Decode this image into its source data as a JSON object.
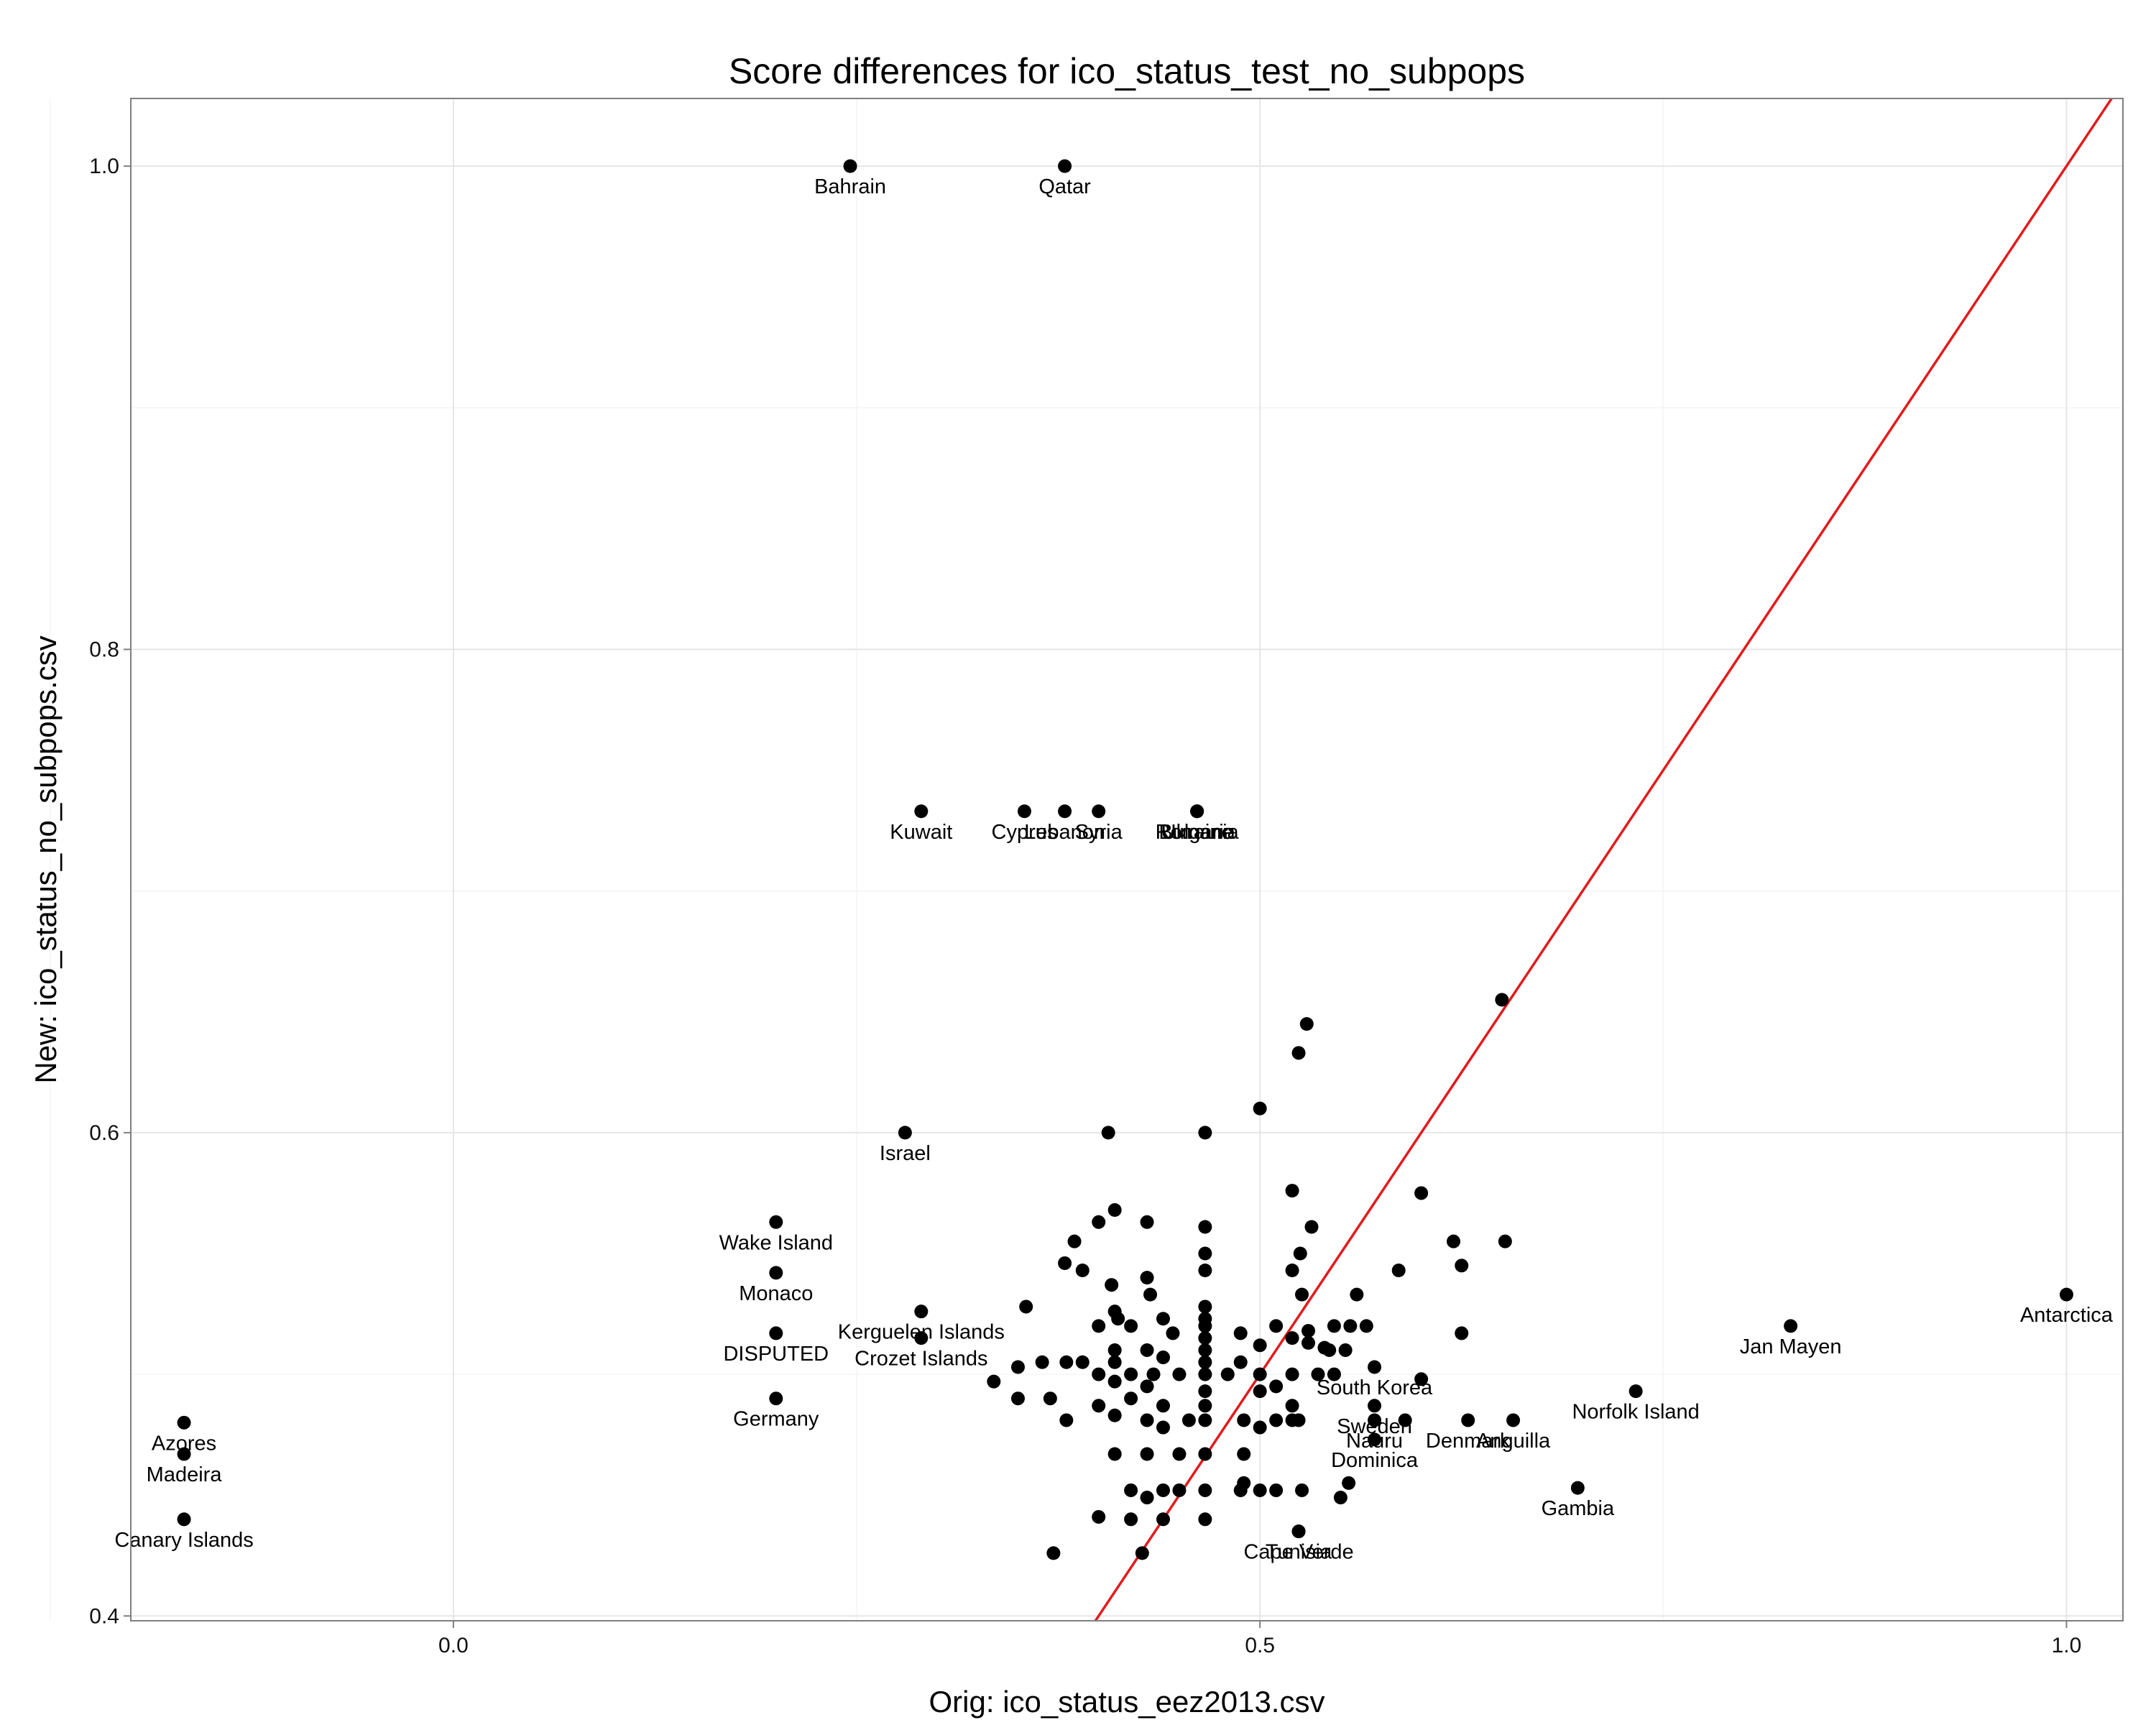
{
  "chart_data": {
    "type": "scatter",
    "title": "Score differences for ico_status_test_no_subpops",
    "xlabel": "Orig: ico_status_eez2013.csv",
    "ylabel": "New: ico_status_no_subpops.csv",
    "xlim": [
      -0.2,
      1.035
    ],
    "ylim": [
      0.398,
      1.028
    ],
    "x_ticks": [
      0.0,
      0.5,
      1.0
    ],
    "x_tick_labels": [
      "0.0",
      "0.5",
      "1.0"
    ],
    "y_ticks": [
      0.4,
      0.6,
      0.8,
      1.0
    ],
    "y_tick_labels": [
      "0.4",
      "0.6",
      "0.8",
      "1.0"
    ],
    "grid": true,
    "reference_line": {
      "slope": 1,
      "intercept": 0,
      "color": "#e41a1c"
    },
    "point_color": "#000000",
    "labeled_points": [
      {
        "label": "Bahrain",
        "x": 0.246,
        "y": 1.0
      },
      {
        "label": "Qatar",
        "x": 0.379,
        "y": 1.0
      },
      {
        "label": "Kuwait",
        "x": 0.29,
        "y": 0.733
      },
      {
        "label": "Cyprus",
        "x": 0.354,
        "y": 0.733
      },
      {
        "label": "Lebanon",
        "x": 0.379,
        "y": 0.733
      },
      {
        "label": "Syria",
        "x": 0.4,
        "y": 0.733
      },
      {
        "label": "Romania",
        "x": 0.461,
        "y": 0.733
      },
      {
        "label": "Bulgaria",
        "x": 0.461,
        "y": 0.733
      },
      {
        "label": "Ukraine",
        "x": 0.461,
        "y": 0.733
      },
      {
        "label": "Israel",
        "x": 0.28,
        "y": 0.6
      },
      {
        "label": "Wake Island",
        "x": 0.2,
        "y": 0.563
      },
      {
        "label": "Monaco",
        "x": 0.2,
        "y": 0.542
      },
      {
        "label": "Kerguelen Islands",
        "x": 0.29,
        "y": 0.526
      },
      {
        "label": "Crozet Islands",
        "x": 0.29,
        "y": 0.515
      },
      {
        "label": "DISPUTED",
        "x": 0.2,
        "y": 0.517
      },
      {
        "label": "Germany",
        "x": 0.2,
        "y": 0.49
      },
      {
        "label": "Azores",
        "x": -0.167,
        "y": 0.48
      },
      {
        "label": "Madeira",
        "x": -0.167,
        "y": 0.467
      },
      {
        "label": "Canary Islands",
        "x": -0.167,
        "y": 0.44
      },
      {
        "label": "South Korea",
        "x": 0.571,
        "y": 0.503
      },
      {
        "label": "Sweden",
        "x": 0.571,
        "y": 0.487
      },
      {
        "label": "Nauru",
        "x": 0.571,
        "y": 0.481
      },
      {
        "label": "Denmark",
        "x": 0.629,
        "y": 0.481
      },
      {
        "label": "Dominica",
        "x": 0.571,
        "y": 0.473
      },
      {
        "label": "Anguilla",
        "x": 0.657,
        "y": 0.481
      },
      {
        "label": "Norfolk Island",
        "x": 0.733,
        "y": 0.493
      },
      {
        "label": "Jan Mayen",
        "x": 0.829,
        "y": 0.52
      },
      {
        "label": "Antarctica",
        "x": 1.0,
        "y": 0.533
      },
      {
        "label": "Gambia",
        "x": 0.697,
        "y": 0.453
      },
      {
        "label": "Cape Verde",
        "x": 0.524,
        "y": 0.435
      },
      {
        "label": "Tunisia",
        "x": 0.524,
        "y": 0.435
      }
    ],
    "points": [
      [
        0.65,
        0.655
      ],
      [
        0.529,
        0.645
      ],
      [
        0.524,
        0.633
      ],
      [
        0.5,
        0.61
      ],
      [
        0.466,
        0.6
      ],
      [
        0.406,
        0.6
      ],
      [
        0.52,
        0.576
      ],
      [
        0.6,
        0.575
      ],
      [
        0.41,
        0.568
      ],
      [
        0.4,
        0.563
      ],
      [
        0.43,
        0.563
      ],
      [
        0.466,
        0.561
      ],
      [
        0.532,
        0.561
      ],
      [
        0.385,
        0.555
      ],
      [
        0.62,
        0.555
      ],
      [
        0.652,
        0.555
      ],
      [
        0.466,
        0.55
      ],
      [
        0.525,
        0.55
      ],
      [
        0.379,
        0.546
      ],
      [
        0.39,
        0.543
      ],
      [
        0.466,
        0.543
      ],
      [
        0.52,
        0.543
      ],
      [
        0.586,
        0.543
      ],
      [
        0.625,
        0.545
      ],
      [
        0.43,
        0.54
      ],
      [
        0.408,
        0.537
      ],
      [
        0.432,
        0.533
      ],
      [
        0.526,
        0.533
      ],
      [
        0.56,
        0.533
      ],
      [
        0.355,
        0.528
      ],
      [
        0.466,
        0.528
      ],
      [
        0.41,
        0.526
      ],
      [
        0.412,
        0.523
      ],
      [
        0.44,
        0.523
      ],
      [
        0.466,
        0.523
      ],
      [
        0.4,
        0.52
      ],
      [
        0.42,
        0.52
      ],
      [
        0.466,
        0.52
      ],
      [
        0.51,
        0.52
      ],
      [
        0.53,
        0.518
      ],
      [
        0.546,
        0.52
      ],
      [
        0.556,
        0.52
      ],
      [
        0.566,
        0.52
      ],
      [
        0.446,
        0.517
      ],
      [
        0.466,
        0.515
      ],
      [
        0.488,
        0.517
      ],
      [
        0.52,
        0.515
      ],
      [
        0.53,
        0.513
      ],
      [
        0.54,
        0.511
      ],
      [
        0.625,
        0.517
      ],
      [
        0.41,
        0.51
      ],
      [
        0.43,
        0.51
      ],
      [
        0.466,
        0.51
      ],
      [
        0.5,
        0.512
      ],
      [
        0.543,
        0.51
      ],
      [
        0.553,
        0.51
      ],
      [
        0.44,
        0.507
      ],
      [
        0.38,
        0.505
      ],
      [
        0.39,
        0.505
      ],
      [
        0.41,
        0.505
      ],
      [
        0.466,
        0.505
      ],
      [
        0.488,
        0.505
      ],
      [
        0.35,
        0.503
      ],
      [
        0.365,
        0.505
      ],
      [
        0.4,
        0.5
      ],
      [
        0.42,
        0.5
      ],
      [
        0.434,
        0.5
      ],
      [
        0.45,
        0.5
      ],
      [
        0.466,
        0.5
      ],
      [
        0.48,
        0.5
      ],
      [
        0.5,
        0.5
      ],
      [
        0.52,
        0.5
      ],
      [
        0.536,
        0.5
      ],
      [
        0.546,
        0.5
      ],
      [
        0.6,
        0.498
      ],
      [
        0.335,
        0.497
      ],
      [
        0.41,
        0.497
      ],
      [
        0.43,
        0.495
      ],
      [
        0.466,
        0.493
      ],
      [
        0.5,
        0.493
      ],
      [
        0.51,
        0.495
      ],
      [
        0.35,
        0.49
      ],
      [
        0.37,
        0.49
      ],
      [
        0.4,
        0.487
      ],
      [
        0.42,
        0.49
      ],
      [
        0.44,
        0.487
      ],
      [
        0.466,
        0.487
      ],
      [
        0.52,
        0.487
      ],
      [
        0.38,
        0.481
      ],
      [
        0.41,
        0.483
      ],
      [
        0.43,
        0.481
      ],
      [
        0.44,
        0.478
      ],
      [
        0.456,
        0.481
      ],
      [
        0.466,
        0.481
      ],
      [
        0.49,
        0.481
      ],
      [
        0.5,
        0.478
      ],
      [
        0.51,
        0.481
      ],
      [
        0.52,
        0.481
      ],
      [
        0.524,
        0.481
      ],
      [
        0.59,
        0.481
      ],
      [
        0.41,
        0.467
      ],
      [
        0.43,
        0.467
      ],
      [
        0.45,
        0.467
      ],
      [
        0.466,
        0.467
      ],
      [
        0.49,
        0.467
      ],
      [
        0.42,
        0.452
      ],
      [
        0.44,
        0.452
      ],
      [
        0.45,
        0.452
      ],
      [
        0.466,
        0.452
      ],
      [
        0.488,
        0.452
      ],
      [
        0.5,
        0.452
      ],
      [
        0.51,
        0.452
      ],
      [
        0.526,
        0.452
      ],
      [
        0.55,
        0.449
      ],
      [
        0.43,
        0.449
      ],
      [
        0.466,
        0.44
      ],
      [
        0.42,
        0.44
      ],
      [
        0.44,
        0.44
      ],
      [
        0.4,
        0.441
      ],
      [
        0.372,
        0.426
      ],
      [
        0.427,
        0.426
      ],
      [
        0.49,
        0.455
      ],
      [
        0.555,
        0.455
      ]
    ]
  }
}
